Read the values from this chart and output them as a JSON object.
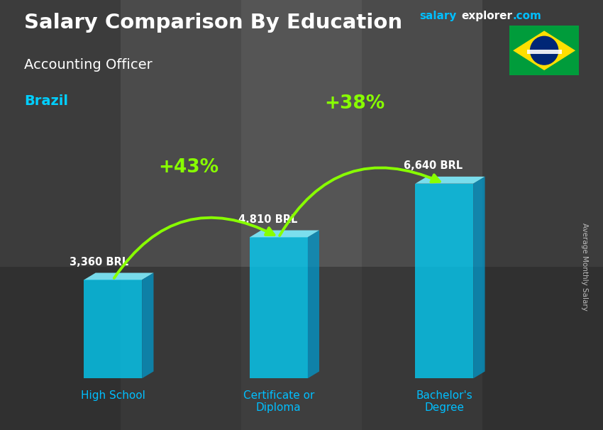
{
  "title_main": "Salary Comparison By Education",
  "title_sub": "Accounting Officer",
  "title_country": "Brazil",
  "ylabel": "Average Monthly Salary",
  "categories": [
    "High School",
    "Certificate or\nDiploma",
    "Bachelor's\nDegree"
  ],
  "values": [
    3360,
    4810,
    6640
  ],
  "labels": [
    "3,360 BRL",
    "4,810 BRL",
    "6,640 BRL"
  ],
  "pct_changes": [
    "+43%",
    "+38%"
  ],
  "bar_color_face": "#00D4FF",
  "bar_color_top": "#80EEFF",
  "bar_color_side": "#0099CC",
  "bar_alpha": 0.75,
  "bg_color": "#555555",
  "title_color": "#FFFFFF",
  "subtitle_color": "#FFFFFF",
  "country_color": "#00CFFF",
  "label_color": "#FFFFFF",
  "pct_color": "#88FF00",
  "arrow_color": "#88FF00",
  "x_tick_color": "#00BFFF",
  "ylim_max": 8500,
  "bar_width": 0.42,
  "bar_positions": [
    1.0,
    2.2,
    3.4
  ],
  "site_salary_color": "#00BFFF",
  "site_explorer_color": "#FFFFFF",
  "site_com_color": "#00BFFF",
  "flag_green": "#009C3B",
  "flag_yellow": "#FFDF00",
  "flag_blue": "#002776"
}
